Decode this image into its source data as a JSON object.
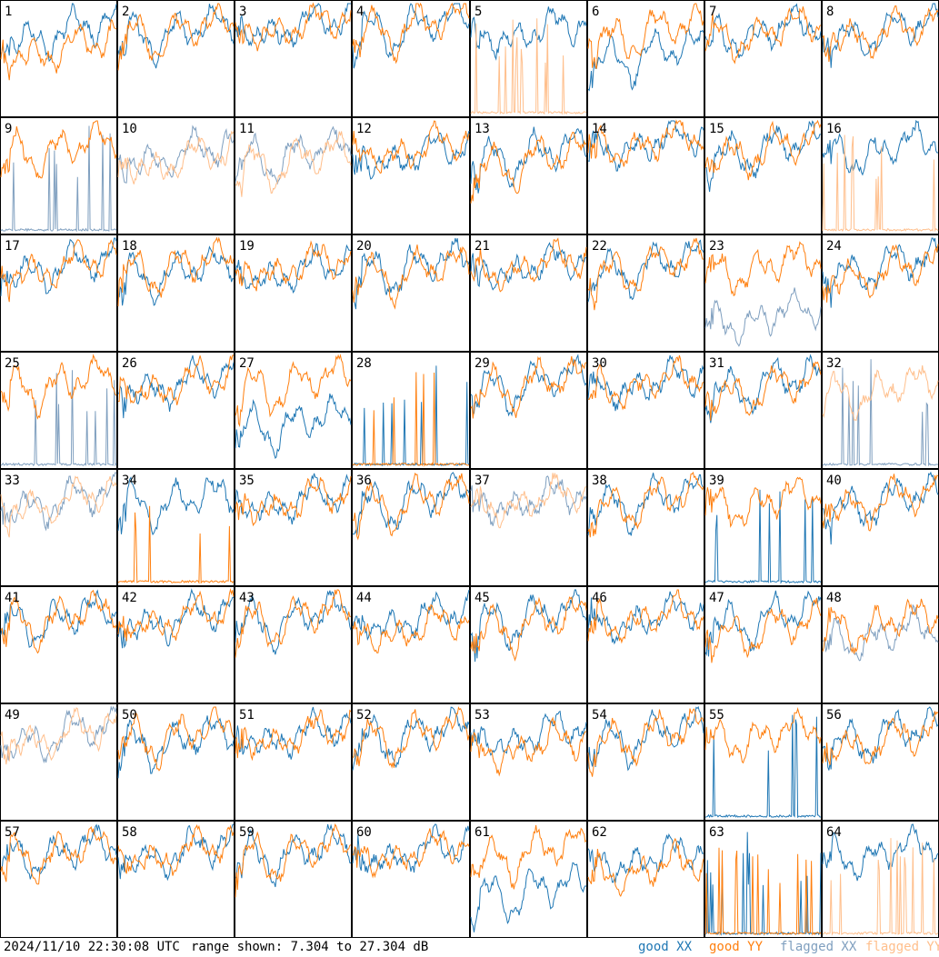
{
  "footer": {
    "timestamp": "2024/11/10 22:30:08 UTC",
    "range_text": "range shown: 7.304 to 27.304 dB"
  },
  "legend": [
    {
      "label": "good XX",
      "color": "#1f77b4"
    },
    {
      "label": "good YY",
      "color": "#ff7f0e"
    },
    {
      "label": "flagged XX",
      "color": "#7f9fbf"
    },
    {
      "label": "flagged YY",
      "color": "#ffbf8c"
    }
  ],
  "chart_data": {
    "type": "line",
    "title": "",
    "ylim": [
      7.304,
      27.304
    ],
    "yunit": "dB",
    "grid": "8x8 panels",
    "panels": [
      {
        "id": "1",
        "xx": "good",
        "yy": "good",
        "xx_level": 22,
        "yy_level": 19,
        "yy_dip": 14
      },
      {
        "id": "2",
        "xx": "good",
        "yy": "good",
        "xx_level": 22,
        "yy_level": 22
      },
      {
        "id": "3",
        "xx": "good",
        "yy": "good",
        "xx_level": 23,
        "yy_level": 23
      },
      {
        "id": "4",
        "xx": "good",
        "yy": "good",
        "xx_level": 23,
        "yy_level": 23
      },
      {
        "id": "5",
        "xx": "good",
        "yy": "flagged",
        "xx_level": 22,
        "yy_level": 8
      },
      {
        "id": "6",
        "xx": "good",
        "yy": "good",
        "xx_level": 18,
        "yy_level": 22
      },
      {
        "id": "7",
        "xx": "good",
        "yy": "good",
        "xx_level": 22,
        "yy_level": 22
      },
      {
        "id": "8",
        "xx": "good",
        "yy": "good",
        "xx_level": 22,
        "yy_level": 22
      },
      {
        "id": "9",
        "xx": "flagged",
        "yy": "good",
        "xx_level": 9,
        "yy_level": 22
      },
      {
        "id": "10",
        "xx": "flagged",
        "yy": "flagged",
        "xx_level": 21,
        "yy_level": 20
      },
      {
        "id": "11",
        "xx": "flagged",
        "yy": "flagged",
        "xx_level": 21,
        "yy_level": 20
      },
      {
        "id": "12",
        "xx": "good",
        "yy": "good",
        "xx_level": 21,
        "yy_level": 22
      },
      {
        "id": "13",
        "xx": "good",
        "yy": "good",
        "xx_level": 21,
        "yy_level": 20
      },
      {
        "id": "14",
        "xx": "good",
        "yy": "good",
        "xx_level": 23,
        "yy_level": 23
      },
      {
        "id": "15",
        "xx": "good",
        "yy": "good",
        "xx_level": 22,
        "yy_level": 22
      },
      {
        "id": "16",
        "xx": "good",
        "yy": "flagged",
        "xx_level": 22,
        "yy_level": 8
      },
      {
        "id": "17",
        "xx": "good",
        "yy": "good",
        "xx_level": 22,
        "yy_level": 22
      },
      {
        "id": "18",
        "xx": "good",
        "yy": "good",
        "xx_level": 21,
        "yy_level": 22
      },
      {
        "id": "19",
        "xx": "good",
        "yy": "good",
        "xx_level": 21,
        "yy_level": 22
      },
      {
        "id": "20",
        "xx": "good",
        "yy": "good",
        "xx_level": 22,
        "yy_level": 21
      },
      {
        "id": "21",
        "xx": "good",
        "yy": "good",
        "xx_level": 22,
        "yy_level": 22
      },
      {
        "id": "22",
        "xx": "good",
        "yy": "good",
        "xx_level": 22,
        "yy_level": 22
      },
      {
        "id": "23",
        "xx": "flagged",
        "yy": "good",
        "xx_level": 13,
        "yy_level": 22
      },
      {
        "id": "24",
        "xx": "good",
        "yy": "good",
        "xx_level": 22,
        "yy_level": 21
      },
      {
        "id": "25",
        "xx": "flagged",
        "yy": "good",
        "xx_level": 8,
        "yy_level": 22
      },
      {
        "id": "26",
        "xx": "good",
        "yy": "good",
        "xx_level": 22,
        "yy_level": 22
      },
      {
        "id": "27",
        "xx": "good",
        "yy": "good",
        "xx_level": 15,
        "yy_level": 22
      },
      {
        "id": "28",
        "xx": "good",
        "yy": "good",
        "xx_level": 8,
        "yy_level": 8
      },
      {
        "id": "29",
        "xx": "good",
        "yy": "good",
        "xx_level": 22,
        "yy_level": 22
      },
      {
        "id": "30",
        "xx": "good",
        "yy": "good",
        "xx_level": 22,
        "yy_level": 22
      },
      {
        "id": "31",
        "xx": "good",
        "yy": "good",
        "xx_level": 22,
        "yy_level": 21
      },
      {
        "id": "32",
        "xx": "flagged",
        "yy": "flagged",
        "xx_level": 9,
        "yy_level": 21
      },
      {
        "id": "33",
        "xx": "flagged",
        "yy": "flagged",
        "xx_level": 22,
        "yy_level": 22
      },
      {
        "id": "34",
        "xx": "good",
        "yy": "good",
        "xx_level": 22,
        "yy_level": 8
      },
      {
        "id": "35",
        "xx": "good",
        "yy": "good",
        "xx_level": 22,
        "yy_level": 22
      },
      {
        "id": "36",
        "xx": "good",
        "yy": "good",
        "xx_level": 22,
        "yy_level": 22
      },
      {
        "id": "37",
        "xx": "flagged",
        "yy": "flagged",
        "xx_level": 22,
        "yy_level": 22
      },
      {
        "id": "38",
        "xx": "good",
        "yy": "good",
        "xx_level": 22,
        "yy_level": 22
      },
      {
        "id": "39",
        "xx": "good",
        "yy": "good",
        "xx_level": 8,
        "yy_level": 22
      },
      {
        "id": "40",
        "xx": "good",
        "yy": "good",
        "xx_level": 22,
        "yy_level": 22
      },
      {
        "id": "41",
        "xx": "good",
        "yy": "good",
        "xx_level": 22,
        "yy_level": 22
      },
      {
        "id": "42",
        "xx": "good",
        "yy": "good",
        "xx_level": 22,
        "yy_level": 22
      },
      {
        "id": "43",
        "xx": "good",
        "yy": "good",
        "xx_level": 22,
        "yy_level": 22
      },
      {
        "id": "44",
        "xx": "good",
        "yy": "good",
        "xx_level": 22,
        "yy_level": 20
      },
      {
        "id": "45",
        "xx": "good",
        "yy": "good",
        "xx_level": 22,
        "yy_level": 21
      },
      {
        "id": "46",
        "xx": "good",
        "yy": "good",
        "xx_level": 22,
        "yy_level": 22
      },
      {
        "id": "47",
        "xx": "good",
        "yy": "good",
        "xx_level": 22,
        "yy_level": 20
      },
      {
        "id": "48",
        "xx": "flagged",
        "yy": "good",
        "xx_level": 19,
        "yy_level": 21
      },
      {
        "id": "49",
        "xx": "flagged",
        "yy": "flagged",
        "xx_level": 22,
        "yy_level": 22
      },
      {
        "id": "50",
        "xx": "good",
        "yy": "good",
        "xx_level": 21,
        "yy_level": 22
      },
      {
        "id": "51",
        "xx": "good",
        "yy": "good",
        "xx_level": 22,
        "yy_level": 22
      },
      {
        "id": "52",
        "xx": "good",
        "yy": "good",
        "xx_level": 22,
        "yy_level": 22
      },
      {
        "id": "53",
        "xx": "good",
        "yy": "good",
        "xx_level": 22,
        "yy_level": 20
      },
      {
        "id": "54",
        "xx": "good",
        "yy": "good",
        "xx_level": 22,
        "yy_level": 22
      },
      {
        "id": "55",
        "xx": "good",
        "yy": "good",
        "xx_level": 9,
        "yy_level": 22
      },
      {
        "id": "56",
        "xx": "good",
        "yy": "good",
        "xx_level": 22,
        "yy_level": 21
      },
      {
        "id": "57",
        "xx": "good",
        "yy": "good",
        "xx_level": 22,
        "yy_level": 22
      },
      {
        "id": "58",
        "xx": "good",
        "yy": "good",
        "xx_level": 22,
        "yy_level": 22
      },
      {
        "id": "59",
        "xx": "good",
        "yy": "good",
        "xx_level": 22,
        "yy_level": 22
      },
      {
        "id": "60",
        "xx": "good",
        "yy": "good",
        "xx_level": 22,
        "yy_level": 22
      },
      {
        "id": "61",
        "xx": "good",
        "yy": "good",
        "xx_level": 15,
        "yy_level": 22
      },
      {
        "id": "62",
        "xx": "good",
        "yy": "good",
        "xx_level": 21,
        "yy_level": 19
      },
      {
        "id": "63",
        "xx": "good",
        "yy": "good",
        "xx_level": 8,
        "yy_level": 8
      },
      {
        "id": "64",
        "xx": "good",
        "yy": "flagged",
        "xx_level": 22,
        "yy_level": 8
      }
    ]
  }
}
